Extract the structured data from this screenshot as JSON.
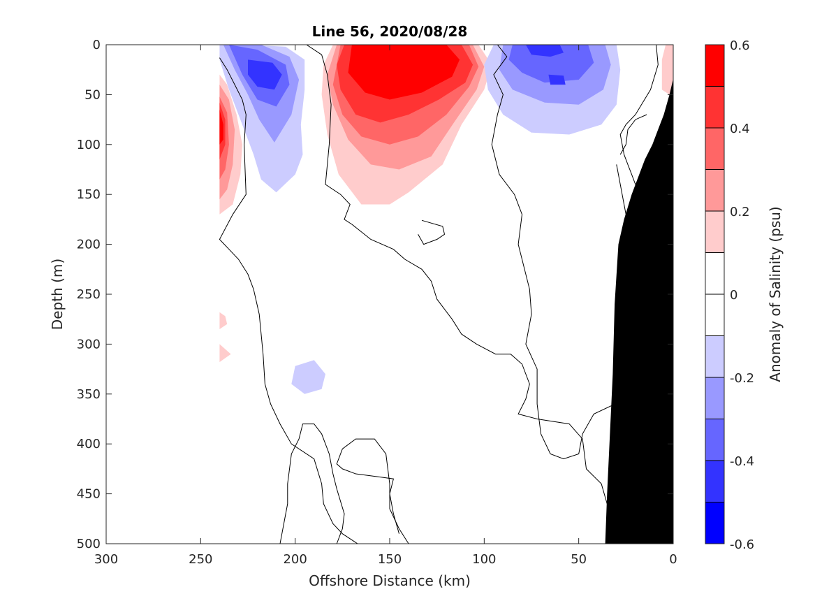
{
  "chart_data": {
    "type": "heatmap",
    "title": "Line 56, 2020/08/28",
    "xlabel": "Offshore Distance (km)",
    "ylabel": "Depth (m)",
    "colorbar_label": "Anomaly of Salinity (psu)",
    "xlim": [
      300,
      0
    ],
    "ylim": [
      500,
      0
    ],
    "x_reversed": true,
    "y_reversed": true,
    "xticks": [
      "300",
      "250",
      "200",
      "150",
      "100",
      "50",
      "0"
    ],
    "xtick_values": [
      300,
      250,
      200,
      150,
      100,
      50,
      0
    ],
    "yticks": [
      "0",
      "50",
      "100",
      "150",
      "200",
      "250",
      "300",
      "350",
      "400",
      "450",
      "500"
    ],
    "ytick_values": [
      0,
      50,
      100,
      150,
      200,
      250,
      300,
      350,
      400,
      450,
      500
    ],
    "colorbar_ticks": [
      "0.6",
      "0.4",
      "0.2",
      "0",
      "-0.2",
      "-0.4",
      "-0.6"
    ],
    "colorbar_tick_values": [
      0.6,
      0.4,
      0.2,
      0,
      -0.2,
      -0.4,
      -0.6
    ],
    "colorbar_range": [
      -0.6,
      0.6
    ],
    "color_levels": [
      {
        "min": 0.5,
        "max": 0.6,
        "color": "#ff0000"
      },
      {
        "min": 0.4,
        "max": 0.5,
        "color": "#ff3333"
      },
      {
        "min": 0.3,
        "max": 0.4,
        "color": "#ff6666"
      },
      {
        "min": 0.2,
        "max": 0.3,
        "color": "#ff9999"
      },
      {
        "min": 0.1,
        "max": 0.2,
        "color": "#ffcccc"
      },
      {
        "min": 0.0,
        "max": 0.1,
        "color": "#ffffff"
      },
      {
        "min": -0.1,
        "max": 0.0,
        "color": "#ffffff"
      },
      {
        "min": -0.2,
        "max": -0.1,
        "color": "#ccccff"
      },
      {
        "min": -0.3,
        "max": -0.2,
        "color": "#9999ff"
      },
      {
        "min": -0.4,
        "max": -0.3,
        "color": "#6666ff"
      },
      {
        "min": -0.5,
        "max": -0.4,
        "color": "#3333ff"
      },
      {
        "min": -0.6,
        "max": -0.5,
        "color": "#0000ff"
      }
    ],
    "data_extent_x": [
      240,
      0
    ],
    "features": [
      {
        "name": "positive-core-offshore",
        "sign": "positive",
        "center": [
          145,
          40
        ],
        "peak": 0.6
      },
      {
        "name": "positive-edge-west",
        "sign": "positive",
        "center": [
          238,
          70
        ],
        "peak": 0.6
      },
      {
        "name": "negative-core-west",
        "sign": "negative",
        "center": [
          215,
          30
        ],
        "peak": -0.5
      },
      {
        "name": "negative-core-nearshore",
        "sign": "negative",
        "center": [
          65,
          30
        ],
        "peak": -0.4
      },
      {
        "name": "negative-blob-deep",
        "sign": "negative",
        "center": [
          195,
          330
        ],
        "peak": -0.15
      }
    ],
    "topography": {
      "color": "#000000",
      "description": "continental slope"
    }
  }
}
